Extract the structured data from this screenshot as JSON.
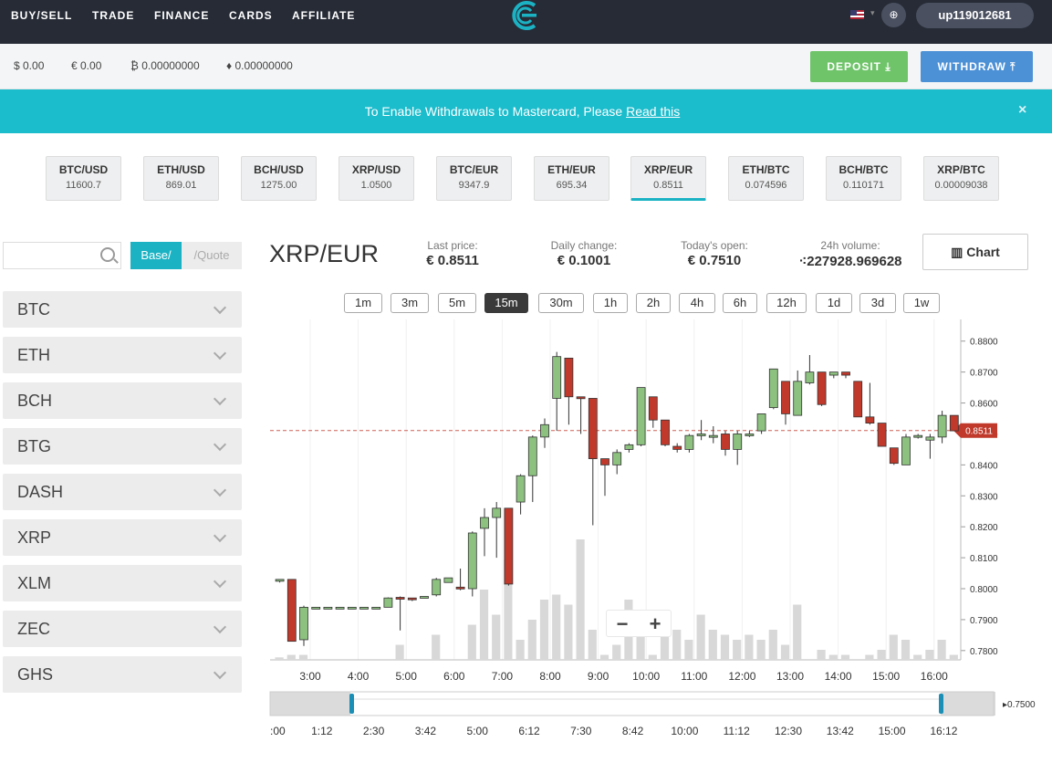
{
  "nav": {
    "items": [
      "BUY/SELL",
      "TRADE",
      "FINANCE",
      "CARDS",
      "AFFILIATE"
    ],
    "user": "up119012681",
    "globe": "⊕"
  },
  "balances": [
    "$ 0.00",
    "€ 0.00",
    "₿ 0.00000000",
    "♦ 0.00000000"
  ],
  "actions": {
    "deposit": "DEPOSIT",
    "withdraw": "WITHDRAW"
  },
  "banner": {
    "text": "To Enable Withdrawals to Mastercard, Please ",
    "link": "Read this",
    "close": "×"
  },
  "pairs": [
    {
      "pair": "BTC/USD",
      "price": "11600.7"
    },
    {
      "pair": "ETH/USD",
      "price": "869.01"
    },
    {
      "pair": "BCH/USD",
      "price": "1275.00"
    },
    {
      "pair": "XRP/USD",
      "price": "1.0500"
    },
    {
      "pair": "BTC/EUR",
      "price": "9347.9"
    },
    {
      "pair": "ETH/EUR",
      "price": "695.34"
    },
    {
      "pair": "XRP/EUR",
      "price": "0.8511",
      "active": true
    },
    {
      "pair": "ETH/BTC",
      "price": "0.074596"
    },
    {
      "pair": "BCH/BTC",
      "price": "0.110171"
    },
    {
      "pair": "XRP/BTC",
      "price": "0.00009038"
    }
  ],
  "sidebar": {
    "search_placeholder": "",
    "base_label": "Base/",
    "quote_label": "/Quote",
    "coins": [
      "BTC",
      "ETH",
      "BCH",
      "BTG",
      "DASH",
      "XRP",
      "XLM",
      "ZEC",
      "GHS"
    ]
  },
  "market": {
    "pair": "XRP/EUR",
    "last_price_label": "Last price:",
    "last_price": "€ 0.8511",
    "daily_change_label": "Daily change:",
    "daily_change": "€ 0.1001",
    "todays_open_label": "Today's open:",
    "todays_open": "€ 0.7510",
    "volume_label": "24h volume:",
    "volume": "227928.969628",
    "chart_button": "Chart"
  },
  "timeframes": [
    "1m",
    "3m",
    "5m",
    "15m",
    "30m",
    "1h",
    "2h",
    "4h",
    "6h",
    "12h",
    "1d",
    "3d",
    "1w"
  ],
  "active_timeframe": "15m",
  "zoom": {
    "minus": "−",
    "plus": "+"
  },
  "colors": {
    "up": "#8cc17f",
    "down": "#c0392b",
    "volume": "#d8d8d8",
    "accent": "#1bb3c4",
    "deposit": "#6fc46a",
    "withdraw": "#4c90d6"
  },
  "chart_data": {
    "type": "candlestick",
    "y_ticks": [
      "0.8800",
      "0.8700",
      "0.8600",
      "0.8500",
      "0.8400",
      "0.8300",
      "0.8200",
      "0.8100",
      "0.8000",
      "0.7900",
      "0.7800"
    ],
    "x_ticks": [
      "3:00",
      "4:00",
      "5:00",
      "6:00",
      "7:00",
      "8:00",
      "9:00",
      "10:00",
      "11:00",
      "12:00",
      "13:00",
      "14:00",
      "15:00",
      "16:00"
    ],
    "ylim": [
      0.777,
      0.887
    ],
    "last_price_label": "0.8511",
    "last_price": 0.8511,
    "navigator_ticks": [
      ":00",
      "1:12",
      "2:30",
      "3:42",
      "5:00",
      "6:12",
      "7:30",
      "8:42",
      "10:00",
      "11:12",
      "12:30",
      "13:42",
      "15:00",
      "16:12"
    ],
    "navigator_label": "0.7500",
    "candles": [
      {
        "o": 0.8025,
        "h": 0.803,
        "l": 0.802,
        "c": 0.803
      },
      {
        "o": 0.803,
        "h": 0.803,
        "l": 0.783,
        "c": 0.783
      },
      {
        "o": 0.7835,
        "h": 0.7945,
        "l": 0.7815,
        "c": 0.794
      },
      {
        "o": 0.794,
        "h": 0.794,
        "l": 0.794,
        "c": 0.794
      },
      {
        "o": 0.794,
        "h": 0.794,
        "l": 0.794,
        "c": 0.794
      },
      {
        "o": 0.794,
        "h": 0.794,
        "l": 0.794,
        "c": 0.794
      },
      {
        "o": 0.794,
        "h": 0.794,
        "l": 0.794,
        "c": 0.794
      },
      {
        "o": 0.794,
        "h": 0.794,
        "l": 0.794,
        "c": 0.794
      },
      {
        "o": 0.794,
        "h": 0.794,
        "l": 0.794,
        "c": 0.794
      },
      {
        "o": 0.794,
        "h": 0.7972,
        "l": 0.794,
        "c": 0.797
      },
      {
        "o": 0.7972,
        "h": 0.7975,
        "l": 0.7865,
        "c": 0.7968
      },
      {
        "o": 0.797,
        "h": 0.797,
        "l": 0.796,
        "c": 0.7965
      },
      {
        "o": 0.7975,
        "h": 0.7975,
        "l": 0.7975,
        "c": 0.7975
      },
      {
        "o": 0.798,
        "h": 0.8035,
        "l": 0.7975,
        "c": 0.803
      },
      {
        "o": 0.802,
        "h": 0.8035,
        "l": 0.802,
        "c": 0.8035
      },
      {
        "o": 0.8005,
        "h": 0.8065,
        "l": 0.7995,
        "c": 0.8
      },
      {
        "o": 0.8,
        "h": 0.8185,
        "l": 0.7975,
        "c": 0.818
      },
      {
        "o": 0.8195,
        "h": 0.826,
        "l": 0.8105,
        "c": 0.823
      },
      {
        "o": 0.823,
        "h": 0.828,
        "l": 0.81,
        "c": 0.826
      },
      {
        "o": 0.826,
        "h": 0.826,
        "l": 0.801,
        "c": 0.8015
      },
      {
        "o": 0.828,
        "h": 0.837,
        "l": 0.824,
        "c": 0.8365
      },
      {
        "o": 0.8365,
        "h": 0.8495,
        "l": 0.828,
        "c": 0.849
      },
      {
        "o": 0.849,
        "h": 0.855,
        "l": 0.8455,
        "c": 0.853
      },
      {
        "o": 0.8615,
        "h": 0.8765,
        "l": 0.851,
        "c": 0.875
      },
      {
        "o": 0.8745,
        "h": 0.8745,
        "l": 0.853,
        "c": 0.862
      },
      {
        "o": 0.862,
        "h": 0.862,
        "l": 0.85,
        "c": 0.8615
      },
      {
        "o": 0.8615,
        "h": 0.8615,
        "l": 0.8205,
        "c": 0.842
      },
      {
        "o": 0.842,
        "h": 0.842,
        "l": 0.83,
        "c": 0.84
      },
      {
        "o": 0.84,
        "h": 0.845,
        "l": 0.837,
        "c": 0.844
      },
      {
        "o": 0.845,
        "h": 0.847,
        "l": 0.844,
        "c": 0.8465
      },
      {
        "o": 0.8465,
        "h": 0.865,
        "l": 0.846,
        "c": 0.865
      },
      {
        "o": 0.862,
        "h": 0.862,
        "l": 0.852,
        "c": 0.8545
      },
      {
        "o": 0.8545,
        "h": 0.8545,
        "l": 0.846,
        "c": 0.8465
      },
      {
        "o": 0.846,
        "h": 0.847,
        "l": 0.844,
        "c": 0.845
      },
      {
        "o": 0.845,
        "h": 0.85,
        "l": 0.844,
        "c": 0.8495
      },
      {
        "o": 0.85,
        "h": 0.8545,
        "l": 0.848,
        "c": 0.85
      },
      {
        "o": 0.849,
        "h": 0.8525,
        "l": 0.847,
        "c": 0.8495
      },
      {
        "o": 0.85,
        "h": 0.851,
        "l": 0.843,
        "c": 0.845
      },
      {
        "o": 0.845,
        "h": 0.851,
        "l": 0.84,
        "c": 0.85
      },
      {
        "o": 0.8495,
        "h": 0.851,
        "l": 0.849,
        "c": 0.85
      },
      {
        "o": 0.851,
        "h": 0.856,
        "l": 0.85,
        "c": 0.8565
      },
      {
        "o": 0.8585,
        "h": 0.871,
        "l": 0.858,
        "c": 0.871
      },
      {
        "o": 0.867,
        "h": 0.867,
        "l": 0.853,
        "c": 0.8565
      },
      {
        "o": 0.856,
        "h": 0.8705,
        "l": 0.856,
        "c": 0.867
      },
      {
        "o": 0.8665,
        "h": 0.8755,
        "l": 0.866,
        "c": 0.87
      },
      {
        "o": 0.87,
        "h": 0.87,
        "l": 0.859,
        "c": 0.8595
      },
      {
        "o": 0.869,
        "h": 0.87,
        "l": 0.868,
        "c": 0.87
      },
      {
        "o": 0.87,
        "h": 0.87,
        "l": 0.868,
        "c": 0.869
      },
      {
        "o": 0.867,
        "h": 0.867,
        "l": 0.8555,
        "c": 0.8555
      },
      {
        "o": 0.8555,
        "h": 0.8665,
        "l": 0.853,
        "c": 0.8535
      },
      {
        "o": 0.8535,
        "h": 0.8535,
        "l": 0.846,
        "c": 0.846
      },
      {
        "o": 0.8455,
        "h": 0.8455,
        "l": 0.84,
        "c": 0.8405
      },
      {
        "o": 0.84,
        "h": 0.85,
        "l": 0.84,
        "c": 0.849
      },
      {
        "o": 0.849,
        "h": 0.85,
        "l": 0.8485,
        "c": 0.8495
      },
      {
        "o": 0.848,
        "h": 0.85,
        "l": 0.842,
        "c": 0.849
      },
      {
        "o": 0.849,
        "h": 0.8575,
        "l": 0.847,
        "c": 0.856
      },
      {
        "o": 0.856,
        "h": 0.856,
        "l": 0.851,
        "c": 0.851
      }
    ],
    "volumes": [
      0.5,
      1,
      1,
      0,
      0,
      0,
      0,
      0,
      0,
      0,
      3,
      0,
      0,
      5,
      0,
      0,
      7,
      14,
      9,
      21,
      4,
      8,
      12,
      13,
      19,
      24,
      6,
      1,
      15,
      12,
      7,
      1,
      9,
      6,
      4,
      5,
      6,
      5,
      4,
      3,
      4,
      6,
      3,
      2,
      0,
      2,
      1,
      1,
      0,
      1,
      2,
      5,
      4,
      1,
      2,
      4,
      1
    ],
    "volume_peaks": {
      "19": 20,
      "24": 11,
      "28": 3,
      "35": 9,
      "39": 5,
      "43": 11,
      "51": 5
    }
  }
}
